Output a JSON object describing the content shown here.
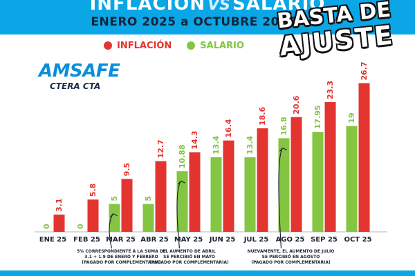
{
  "header": {
    "title_left": "INFLACIÓN",
    "title_vs": "VS",
    "title_right": "SALARIO",
    "subtitle": "ENERO 2025 a OCTUBRE 2025"
  },
  "slogan": {
    "line1": "BASTA DE",
    "line2": "AJUSTE"
  },
  "logo": {
    "name": "AMSAFE",
    "sub": "CTERA CTA"
  },
  "colors": {
    "header_bg": "#0aa6e6",
    "inflacion": "#e3342f",
    "salario": "#84c541",
    "axis": "#b5b5b5",
    "text_dark": "#1b2330"
  },
  "chart_data": {
    "type": "bar",
    "categories": [
      "ENE 25",
      "FEB 25",
      "MAR 25",
      "ABR 25",
      "MAY 25",
      "JUN 25",
      "JUL 25",
      "AGO 25",
      "SEP 25",
      "OCT 25"
    ],
    "series": [
      {
        "name": "INFLACIÓN",
        "color": "#e3342f",
        "values": [
          3.1,
          5.8,
          9.5,
          12.7,
          14.3,
          16.4,
          18.6,
          20.6,
          23.3,
          26.7
        ],
        "labels": [
          "3.1",
          "5.8",
          "9.5",
          "12.7",
          "14.3",
          "16.4",
          "18.6",
          "20.6",
          "23.3",
          "26.7"
        ]
      },
      {
        "name": "SALARIO",
        "color": "#84c541",
        "values": [
          0,
          0,
          5,
          5,
          10.88,
          13.4,
          13.4,
          16.8,
          17.95,
          19
        ],
        "labels": [
          "0",
          "0",
          "5",
          "5",
          "10.88",
          "13.4",
          "13.4",
          "16.8",
          "17.95",
          "19"
        ]
      }
    ],
    "title": "INFLACIÓN VS SALARIO",
    "subtitle": "ENERO 2025 a OCTUBRE 2025",
    "legend_position": "top",
    "grid": false,
    "ylim": [
      0,
      28
    ],
    "annotations": [
      {
        "category": "MAR 25",
        "lines": [
          "5% CORRESPONDIENTE A LA SUMA DE",
          "3.1 + 1.9 DE ENERO Y FEBRERO",
          "(PAGADO POR COMPLEMENTARIA)"
        ]
      },
      {
        "category": "MAY 25",
        "lines": [
          "EL AUMENTO DE ABRIL",
          "SE PERCIBIÓ EN MAYO",
          "(PAGADO POR COMPLEMENTARIA)"
        ]
      },
      {
        "category": "AGO 25",
        "lines": [
          "NUEVAMENTE, EL AUMENTO DE JULIO",
          "SE PERCIBIÓ EN AGOSTO",
          "(PAGADO POR COMPLEMENTARIA)"
        ]
      }
    ]
  }
}
